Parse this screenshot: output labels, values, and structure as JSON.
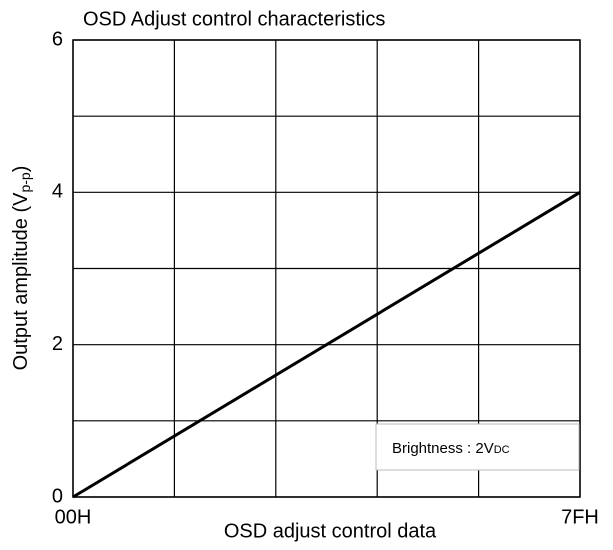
{
  "chart_data": {
    "type": "line",
    "title": "OSD Adjust control characteristics",
    "xlabel": "OSD adjust control data",
    "ylabel": {
      "text": "Output amplitude (V",
      "subscript": "p-p",
      "suffix": ")"
    },
    "annotation": {
      "text": "Brightness : 2V",
      "subscript": "DC"
    },
    "x": [
      0,
      127
    ],
    "series": [
      {
        "color": "#000000",
        "values": [
          0,
          4
        ]
      }
    ],
    "xlim": [
      0,
      127
    ],
    "xticks": [
      {
        "value": 0,
        "label": "00H"
      },
      {
        "value": 127,
        "label": "7FH"
      }
    ],
    "xminor": [
      25.4,
      50.8,
      76.2,
      101.6
    ],
    "ylim": [
      0,
      6
    ],
    "yticks": [
      0,
      2,
      4,
      6
    ],
    "yminor": [
      1,
      3,
      5
    ],
    "grid": true
  }
}
